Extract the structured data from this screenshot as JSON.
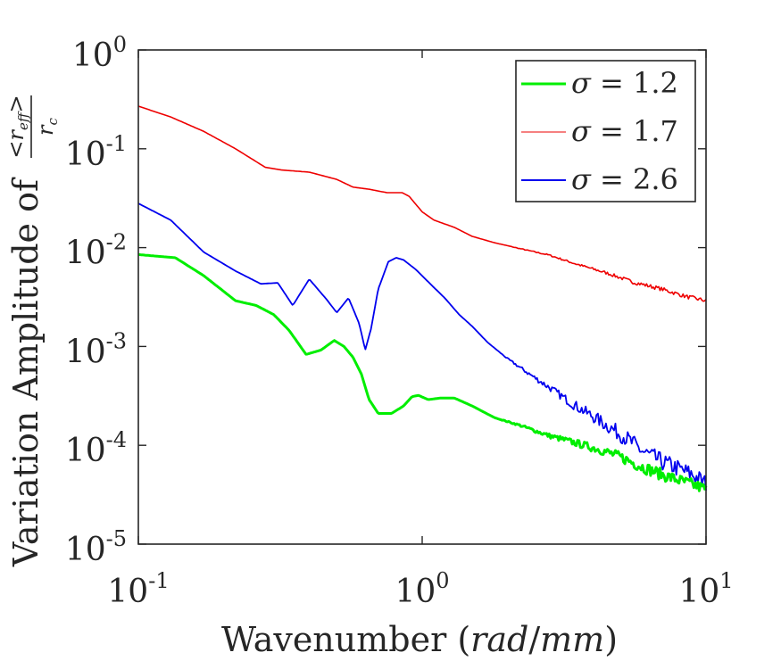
{
  "chart_data": {
    "type": "line",
    "title": "",
    "xlabel": "Wavenumber (rad/mm)",
    "xlabel_parts": {
      "plain": "Wavenumber ",
      "open": "(",
      "unit_num": "rad",
      "slash": "/",
      "unit_den": "mm",
      "close": ")"
    },
    "ylabel": "Variation Amplitude of <r_eff>/r_c",
    "ylabel_parts": {
      "plain": "Variation Amplitude of ",
      "num_lt": "<",
      "num_r": "r",
      "num_sub": "eff",
      "num_gt": ">",
      "den_r": "r",
      "den_sub": "c"
    },
    "x_scale": "log",
    "y_scale": "log",
    "xlim": [
      0.1,
      10
    ],
    "ylim": [
      1e-05,
      1
    ],
    "x_ticks": [
      {
        "value": 0.1,
        "base": "10",
        "exp": "-1"
      },
      {
        "value": 1,
        "base": "10",
        "exp": "0"
      },
      {
        "value": 10,
        "base": "10",
        "exp": "1"
      }
    ],
    "y_ticks": [
      {
        "value": 1e-05,
        "base": "10",
        "exp": "-5"
      },
      {
        "value": 0.0001,
        "base": "10",
        "exp": "-4"
      },
      {
        "value": 0.001,
        "base": "10",
        "exp": "-3"
      },
      {
        "value": 0.01,
        "base": "10",
        "exp": "-2"
      },
      {
        "value": 0.1,
        "base": "10",
        "exp": "-1"
      },
      {
        "value": 1,
        "base": "10",
        "exp": "0"
      }
    ],
    "legend_position": "top-right",
    "series": [
      {
        "name": "σ = 1.2",
        "symbol": "σ",
        "value_label": "= 1.2",
        "color": "#00ee00",
        "points": [
          [
            0.1,
            0.0085
          ],
          [
            0.135,
            0.0079
          ],
          [
            0.17,
            0.0052
          ],
          [
            0.22,
            0.0029
          ],
          [
            0.26,
            0.0026
          ],
          [
            0.3,
            0.0021
          ],
          [
            0.34,
            0.00145
          ],
          [
            0.39,
            0.00083
          ],
          [
            0.44,
            0.00092
          ],
          [
            0.49,
            0.00115
          ],
          [
            0.53,
            0.001
          ],
          [
            0.57,
            0.00078
          ],
          [
            0.61,
            0.00053
          ],
          [
            0.65,
            0.00029
          ],
          [
            0.7,
            0.00021
          ],
          [
            0.78,
            0.00021
          ],
          [
            0.86,
            0.00025
          ],
          [
            0.92,
            0.00031
          ],
          [
            0.97,
            0.00032
          ],
          [
            1.05,
            0.00029
          ],
          [
            1.15,
            0.0003
          ],
          [
            1.3,
            0.0003
          ],
          [
            1.5,
            0.00025
          ],
          [
            1.8,
            0.00019
          ],
          [
            2.2,
            0.00016
          ],
          [
            2.8,
            0.000125
          ],
          [
            3.5,
            0.000105
          ],
          [
            4.3,
            8.9e-05
          ],
          [
            5.0,
            7.6e-05
          ],
          [
            6.0,
            6e-05
          ],
          [
            7.2,
            4.9e-05
          ],
          [
            8.5,
            4.2e-05
          ],
          [
            10,
            3.6e-05
          ]
        ]
      },
      {
        "name": "σ = 1.7",
        "symbol": "σ",
        "value_label": "= 1.7",
        "color": "#ee0000",
        "points": [
          [
            0.1,
            0.27
          ],
          [
            0.13,
            0.21
          ],
          [
            0.17,
            0.15
          ],
          [
            0.22,
            0.1
          ],
          [
            0.28,
            0.065
          ],
          [
            0.32,
            0.061
          ],
          [
            0.4,
            0.058
          ],
          [
            0.5,
            0.049
          ],
          [
            0.57,
            0.041
          ],
          [
            0.65,
            0.039
          ],
          [
            0.75,
            0.036
          ],
          [
            0.85,
            0.036
          ],
          [
            0.9,
            0.033
          ],
          [
            1.0,
            0.023
          ],
          [
            1.1,
            0.019
          ],
          [
            1.3,
            0.016
          ],
          [
            1.5,
            0.013
          ],
          [
            1.8,
            0.0112
          ],
          [
            2.2,
            0.0098
          ],
          [
            2.8,
            0.0084
          ],
          [
            3.5,
            0.0068
          ],
          [
            4.5,
            0.0055
          ],
          [
            5.5,
            0.0045
          ],
          [
            7.0,
            0.0038
          ],
          [
            8.5,
            0.0032
          ],
          [
            10,
            0.0029
          ]
        ]
      },
      {
        "name": "σ = 2.6",
        "symbol": "σ",
        "value_label": "= 2.6",
        "color": "#0000ee",
        "points": [
          [
            0.1,
            0.028
          ],
          [
            0.13,
            0.019
          ],
          [
            0.17,
            0.009
          ],
          [
            0.22,
            0.0058
          ],
          [
            0.27,
            0.0043
          ],
          [
            0.31,
            0.0044
          ],
          [
            0.35,
            0.0026
          ],
          [
            0.4,
            0.0048
          ],
          [
            0.46,
            0.003
          ],
          [
            0.5,
            0.0022
          ],
          [
            0.55,
            0.0031
          ],
          [
            0.6,
            0.0017
          ],
          [
            0.63,
            0.00092
          ],
          [
            0.66,
            0.0015
          ],
          [
            0.7,
            0.0038
          ],
          [
            0.76,
            0.0072
          ],
          [
            0.81,
            0.0079
          ],
          [
            0.86,
            0.0075
          ],
          [
            0.95,
            0.006
          ],
          [
            1.05,
            0.0045
          ],
          [
            1.2,
            0.0031
          ],
          [
            1.35,
            0.0021
          ],
          [
            1.5,
            0.0016
          ],
          [
            1.7,
            0.0011
          ],
          [
            2.0,
            0.00075
          ],
          [
            2.4,
            0.00052
          ],
          [
            2.9,
            0.00036
          ],
          [
            3.4,
            0.00026
          ],
          [
            4.0,
            0.000195
          ],
          [
            4.7,
            0.000145
          ],
          [
            5.3,
            0.000115
          ],
          [
            6.0,
            8.6e-05
          ],
          [
            7.0,
            6.8e-05
          ],
          [
            8.0,
            5.8e-05
          ],
          [
            9.0,
            5e-05
          ],
          [
            10,
            4.1e-05
          ]
        ]
      }
    ]
  }
}
